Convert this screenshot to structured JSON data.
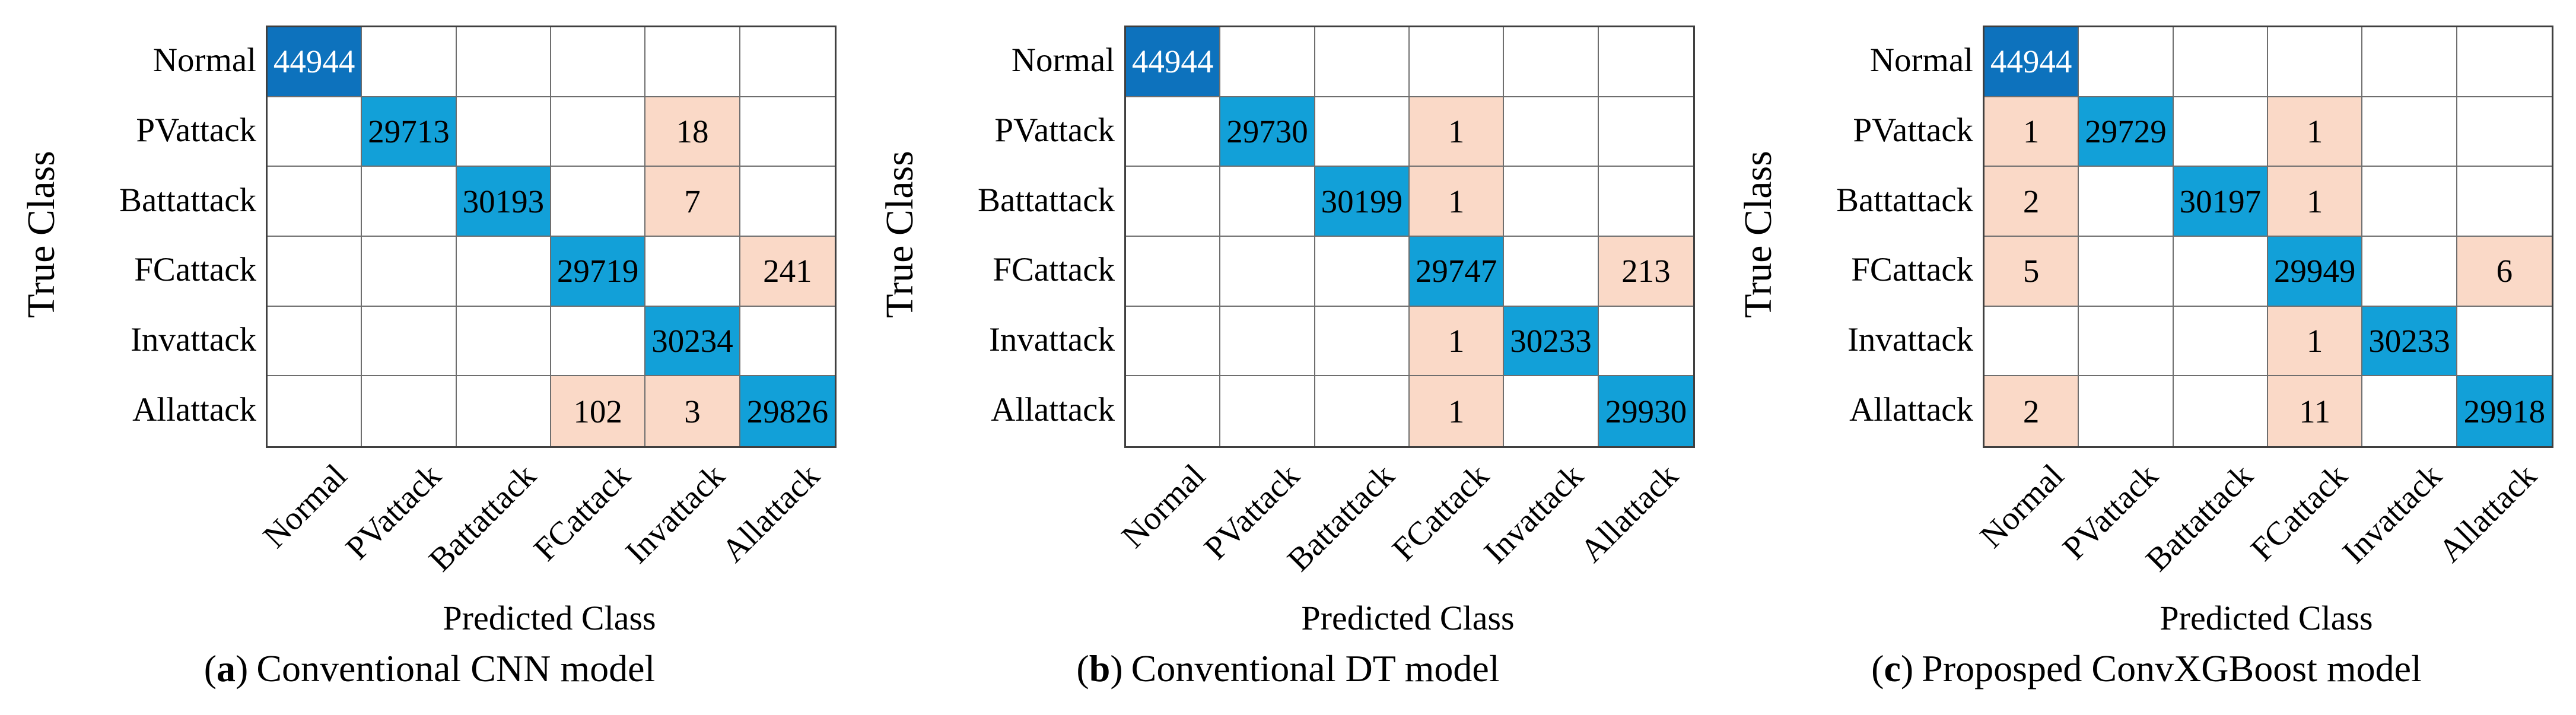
{
  "figure": {
    "paren_open": "(",
    "paren_close": ")",
    "diag_strong_threshold": 40000,
    "colors": {
      "diag_strong": "#0d72bd",
      "diag": "#12a0d8",
      "offdiag": "#fad9c7",
      "diag_strong_text": "#ffffff",
      "cell_text": "#000000",
      "grid_line": "#6e6e6e",
      "grid_border": "#3f3f3f",
      "background": "#ffffff"
    }
  },
  "chart_data": [
    {
      "type": "heatmap",
      "title": "(a) Conventional CNN model",
      "caption_letter": "a",
      "caption_text": "Conventional CNN model",
      "xlabel": "Predicted Class",
      "ylabel": "True Class",
      "x_categories": [
        "Normal",
        "PVattack",
        "Battattack",
        "FCattack",
        "Invattack",
        "Allattack"
      ],
      "y_categories": [
        "Normal",
        "PVattack",
        "Battattack",
        "FCattack",
        "Invattack",
        "Allattack"
      ],
      "values": [
        [
          44944,
          0,
          0,
          0,
          0,
          0
        ],
        [
          0,
          29713,
          0,
          0,
          18,
          0
        ],
        [
          0,
          0,
          30193,
          0,
          7,
          0
        ],
        [
          0,
          0,
          0,
          29719,
          0,
          241
        ],
        [
          0,
          0,
          0,
          0,
          30234,
          0
        ],
        [
          0,
          0,
          0,
          102,
          3,
          29826
        ]
      ],
      "legend": "none",
      "grid": true
    },
    {
      "type": "heatmap",
      "title": "(b) Conventional DT model",
      "caption_letter": "b",
      "caption_text": "Conventional DT model",
      "xlabel": "Predicted Class",
      "ylabel": "True Class",
      "x_categories": [
        "Normal",
        "PVattack",
        "Battattack",
        "FCattack",
        "Invattack",
        "Allattack"
      ],
      "y_categories": [
        "Normal",
        "PVattack",
        "Battattack",
        "FCattack",
        "Invattack",
        "Allattack"
      ],
      "values": [
        [
          44944,
          0,
          0,
          0,
          0,
          0
        ],
        [
          0,
          29730,
          0,
          1,
          0,
          0
        ],
        [
          0,
          0,
          30199,
          1,
          0,
          0
        ],
        [
          0,
          0,
          0,
          29747,
          0,
          213
        ],
        [
          0,
          0,
          0,
          1,
          30233,
          0
        ],
        [
          0,
          0,
          0,
          1,
          0,
          29930
        ]
      ],
      "legend": "none",
      "grid": true
    },
    {
      "type": "heatmap",
      "title": "(c) Proposped ConvXGBoost model",
      "caption_letter": "c",
      "caption_text": "Proposped ConvXGBoost model",
      "xlabel": "Predicted Class",
      "ylabel": "True Class",
      "x_categories": [
        "Normal",
        "PVattack",
        "Battattack",
        "FCattack",
        "Invattack",
        "Allattack"
      ],
      "y_categories": [
        "Normal",
        "PVattack",
        "Battattack",
        "FCattack",
        "Invattack",
        "Allattack"
      ],
      "values": [
        [
          44944,
          0,
          0,
          0,
          0,
          0
        ],
        [
          1,
          29729,
          0,
          1,
          0,
          0
        ],
        [
          2,
          0,
          30197,
          1,
          0,
          0
        ],
        [
          5,
          0,
          0,
          29949,
          0,
          6
        ],
        [
          0,
          0,
          0,
          1,
          30233,
          0
        ],
        [
          2,
          0,
          0,
          11,
          0,
          29918
        ]
      ],
      "legend": "none",
      "grid": true
    }
  ]
}
